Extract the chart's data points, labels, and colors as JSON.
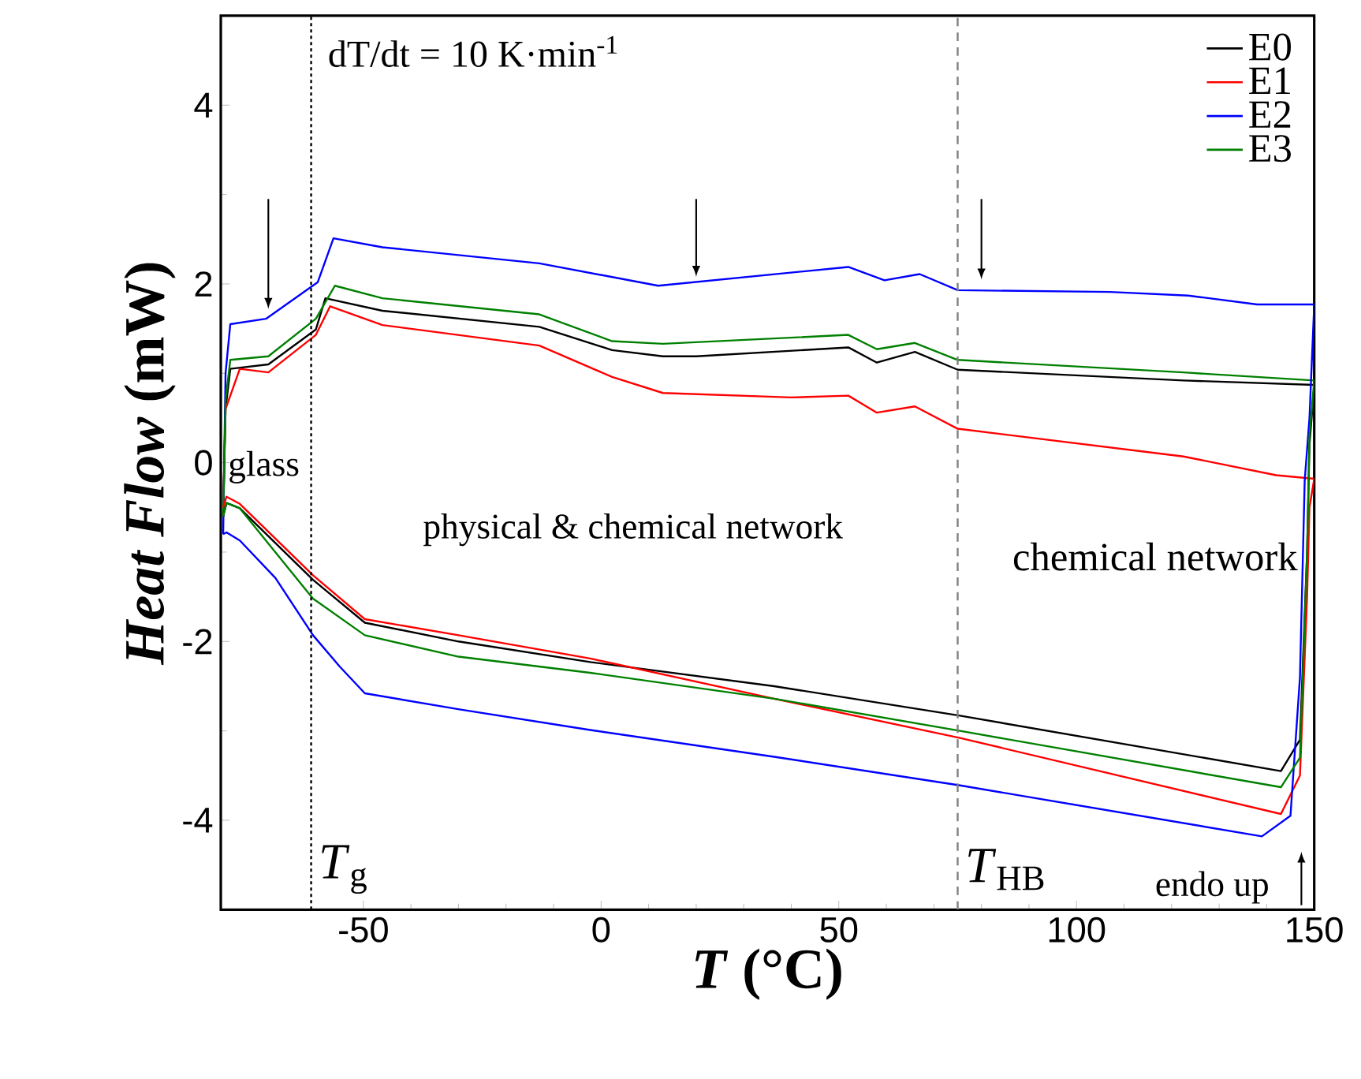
{
  "chart_data": {
    "type": "line",
    "xlabel": "*T* (°C)",
    "ylabel": "*Heat Flow* (mW)",
    "xlim": [
      -80,
      150
    ],
    "ylim": [
      -5,
      5
    ],
    "xticks": [
      -50,
      0,
      50,
      100,
      150
    ],
    "yticks": [
      -4,
      -2,
      0,
      2,
      4
    ],
    "legend": "top right",
    "line_style": "solid",
    "series": [
      {
        "name": "E0",
        "color": "#000000",
        "x": [
          -79.5,
          -79,
          -78,
          -70,
          -60,
          -58,
          -46,
          -13,
          2.3,
          13,
          20,
          52,
          58,
          66,
          75,
          122.5,
          150
        ],
        "values": [
          -0.6,
          0.6,
          1.05,
          1.1,
          1.49,
          1.84,
          1.7,
          1.52,
          1.26,
          1.19,
          1.19,
          1.29,
          1.12,
          1.24,
          1.04,
          0.92,
          0.87
        ]
      },
      {
        "name": "E1",
        "color": "#ff0000",
        "x": [
          -79.5,
          -79,
          -76,
          -70,
          -60,
          -57,
          -46,
          -13,
          2.3,
          13,
          40,
          52,
          58,
          66,
          75,
          122.5,
          142,
          150
        ],
        "values": [
          -0.5,
          0.6,
          1.05,
          1.01,
          1.43,
          1.75,
          1.54,
          1.31,
          0.96,
          0.78,
          0.73,
          0.75,
          0.56,
          0.63,
          0.38,
          0.07,
          -0.14,
          -0.18
        ]
      },
      {
        "name": "E2",
        "color": "#0000ff",
        "x": [
          -79.5,
          -79,
          -78,
          -70.5,
          -59.6,
          -56.3,
          -46,
          -13,
          12,
          52,
          59.6,
          67,
          75,
          107,
          123.5,
          138,
          150
        ],
        "values": [
          -0.8,
          1.0,
          1.55,
          1.61,
          2.02,
          2.51,
          2.41,
          2.23,
          1.98,
          2.19,
          2.04,
          2.11,
          1.93,
          1.91,
          1.87,
          1.77,
          1.77
        ]
      },
      {
        "name": "E3",
        "color": "#008000",
        "x": [
          -79.5,
          -79,
          -78,
          -70,
          -60,
          -56,
          -46,
          -13,
          2.3,
          13,
          52,
          58,
          66,
          75,
          122.5,
          150
        ],
        "values": [
          -0.6,
          0.7,
          1.15,
          1.19,
          1.61,
          1.98,
          1.84,
          1.66,
          1.36,
          1.33,
          1.43,
          1.27,
          1.34,
          1.15,
          1.01,
          0.92
        ]
      },
      {
        "color": "#000000",
        "x": [
          -79.5,
          -78.8,
          -76,
          -60.6,
          -49.7,
          -30,
          -2.3,
          36.4,
          75.5,
          143,
          147,
          148.5,
          149,
          150
        ],
        "values": [
          -0.6,
          -0.45,
          -0.51,
          -1.31,
          -1.79,
          -2.0,
          -2.23,
          -2.5,
          -2.83,
          -3.45,
          -3.1,
          -1.0,
          0.2,
          0.87
        ]
      },
      {
        "color": "#ff0000",
        "x": [
          -79.5,
          -78.8,
          -76,
          -60.6,
          -49.7,
          -30,
          -2.3,
          36.4,
          75.5,
          143,
          147,
          148.5,
          149,
          150
        ],
        "values": [
          -0.5,
          -0.38,
          -0.46,
          -1.26,
          -1.75,
          -1.93,
          -2.19,
          -2.64,
          -3.08,
          -3.93,
          -3.5,
          -1.5,
          -0.5,
          -0.18
        ]
      },
      {
        "color": "#0000ff",
        "x": [
          -79.5,
          -78.8,
          -76,
          -68.5,
          -60.6,
          -55,
          -49.7,
          -29.8,
          -2.3,
          36.4,
          75.5,
          139,
          145,
          147,
          148,
          149,
          150
        ],
        "values": [
          -0.8,
          -0.78,
          -0.87,
          -1.29,
          -1.93,
          -2.28,
          -2.58,
          -2.76,
          -2.99,
          -3.29,
          -3.61,
          -4.18,
          -3.95,
          -2.4,
          -0.2,
          0.5,
          1.77
        ]
      },
      {
        "color": "#008000",
        "x": [
          -79.5,
          -78.8,
          -76,
          -60.6,
          -49.7,
          -30,
          -2.3,
          36.4,
          75.5,
          143,
          147,
          148.5,
          149,
          150
        ],
        "values": [
          -0.6,
          -0.45,
          -0.51,
          -1.52,
          -1.93,
          -2.17,
          -2.35,
          -2.64,
          -3.0,
          -3.63,
          -3.3,
          -1.0,
          0.3,
          0.92
        ]
      }
    ],
    "ref_lines": [
      {
        "axis": "x",
        "value": -61,
        "label": "*T*$_{g}$",
        "color": "#000000",
        "line_style": "dotted"
      },
      {
        "axis": "x",
        "value": 75,
        "label": "*T*$_{HB}$",
        "color": "#808080",
        "line_style": "dashed"
      }
    ],
    "annotations": [
      "dT/dt = 10 K·min$^{-1}$",
      "glass",
      "physical & chemical network",
      "chemical network",
      "endo up"
    ]
  }
}
